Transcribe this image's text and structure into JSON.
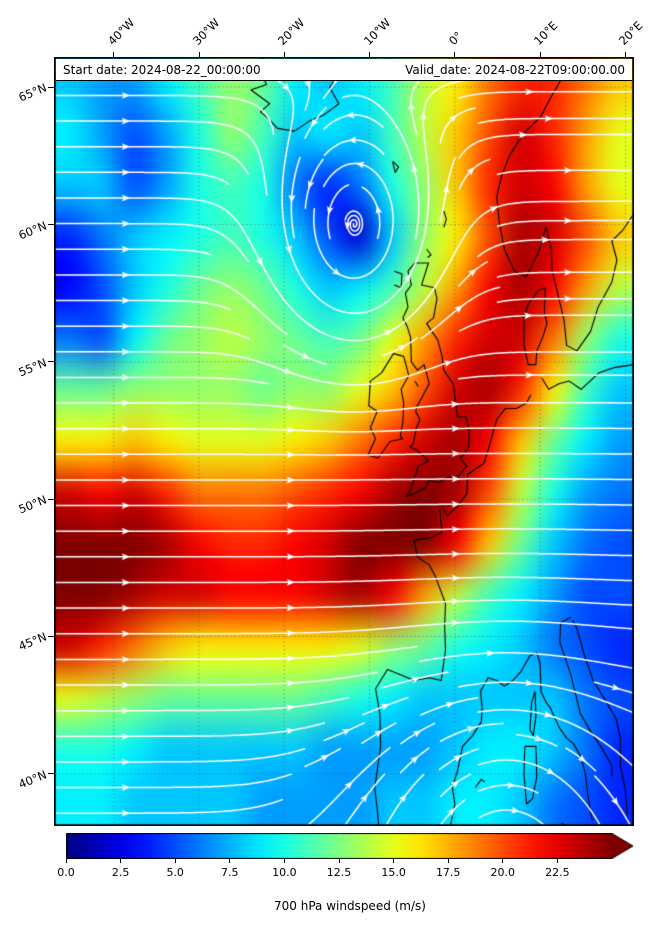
{
  "figure": {
    "annotations": {
      "start_date": "Start date: 2024-08-22_00:00:00",
      "valid_date": "Valid_date: 2024-08-22T09:00:00.00"
    },
    "axes": {
      "lon_ticks": [
        {
          "label": "40°W",
          "lon": -40
        },
        {
          "label": "30°W",
          "lon": -30
        },
        {
          "label": "20°W",
          "lon": -20
        },
        {
          "label": "10°W",
          "lon": -10
        },
        {
          "label": "0°",
          "lon": 0
        },
        {
          "label": "10°E",
          "lon": 10
        },
        {
          "label": "20°E",
          "lon": 20
        }
      ],
      "lat_ticks": [
        {
          "label": "65°N",
          "lat": 65
        },
        {
          "label": "60°N",
          "lat": 60
        },
        {
          "label": "55°N",
          "lat": 55
        },
        {
          "label": "50°N",
          "lat": 50
        },
        {
          "label": "45°N",
          "lat": 45
        },
        {
          "label": "40°N",
          "lat": 40
        }
      ]
    },
    "colorbar": {
      "label": "700 hPa windspeed (m/s)",
      "ticks": [
        "0.0",
        "2.5",
        "5.0",
        "7.5",
        "10.0",
        "12.5",
        "15.0",
        "17.5",
        "20.0",
        "22.5"
      ],
      "extend": "max"
    }
  },
  "chart_data": {
    "type": "heatmap",
    "title": "700 hPa windspeed",
    "units": "m/s",
    "colormap": "jet",
    "vmin": 0,
    "vmax": 25,
    "extent_lonlat": [
      -47,
      21,
      38.1,
      66.1
    ],
    "lons": [
      -47,
      -43,
      -39,
      -35,
      -31,
      -27,
      -23,
      -19,
      -15,
      -11,
      -7,
      -3,
      1,
      5,
      9,
      13,
      17,
      21
    ],
    "lats": [
      66,
      64,
      62,
      60,
      58,
      56,
      54,
      52,
      50,
      48,
      46,
      44,
      42,
      40,
      38
    ],
    "values": [
      [
        8,
        7,
        7,
        9,
        11,
        13,
        12,
        9,
        8,
        9,
        11,
        14,
        16,
        19,
        21,
        21,
        19,
        17
      ],
      [
        9,
        7,
        5,
        7,
        10,
        13,
        11,
        8,
        9,
        8,
        11,
        14,
        17,
        20,
        23,
        21,
        18,
        15
      ],
      [
        8,
        8,
        5,
        7,
        10,
        11,
        10,
        6,
        4,
        6,
        10,
        13,
        17,
        21,
        23,
        22,
        18,
        15
      ],
      [
        4,
        6,
        8,
        9,
        10,
        11,
        10,
        8,
        5,
        2,
        8,
        13,
        16,
        20,
        24,
        23,
        20,
        17
      ],
      [
        3,
        5,
        8,
        10,
        12,
        13,
        12,
        10,
        8,
        9,
        11,
        14,
        18,
        22,
        24,
        22,
        18,
        14
      ],
      [
        6,
        5,
        9,
        12,
        13,
        14,
        13,
        12,
        11,
        12,
        15,
        18,
        21,
        23,
        23,
        19,
        13,
        10
      ],
      [
        12,
        12,
        13,
        13,
        13,
        13,
        12,
        13,
        13,
        15,
        17,
        20,
        23,
        24,
        21,
        16,
        11,
        8
      ],
      [
        16,
        16,
        17,
        16,
        15,
        15,
        15,
        16,
        17,
        19,
        21,
        23,
        24,
        22,
        17,
        12,
        9,
        7
      ],
      [
        23,
        22,
        23,
        21,
        19,
        19,
        19,
        20,
        21,
        22,
        24,
        25,
        24,
        20,
        14,
        10,
        7,
        6
      ],
      [
        25,
        25,
        25,
        24,
        22,
        21,
        21,
        22,
        23,
        25,
        25,
        25,
        22,
        17,
        12,
        8,
        6,
        5
      ],
      [
        25,
        25,
        24,
        23,
        23,
        22,
        22,
        22,
        23,
        24,
        22,
        18,
        14,
        11,
        9,
        7,
        5,
        5
      ],
      [
        23,
        21,
        19,
        17,
        16,
        16,
        16,
        16,
        16,
        15,
        13,
        12,
        10,
        9,
        8,
        6,
        5,
        4
      ],
      [
        15,
        14,
        13,
        12,
        12,
        12,
        12,
        12,
        11,
        10,
        9,
        8,
        8,
        8,
        8,
        8,
        6,
        5
      ],
      [
        10,
        10,
        9,
        8,
        8,
        8,
        8,
        8,
        7,
        7,
        7,
        7,
        8,
        9,
        9,
        8,
        6,
        4
      ],
      [
        9,
        9,
        8,
        8,
        8,
        8,
        7,
        7,
        7,
        7,
        8,
        8,
        9,
        9,
        8,
        6,
        5,
        4
      ]
    ],
    "overlays": {
      "streamlines": {
        "color": "#ffffff",
        "description": "white wind streamlines with arrowheads; cyclonic vortex centred near 12W, 59.5N; strong westerly jet near 45-50N",
        "vortex_center_lonlat": [
          -11.8,
          59.6
        ]
      },
      "coastlines": {
        "color": "#000000"
      }
    }
  }
}
